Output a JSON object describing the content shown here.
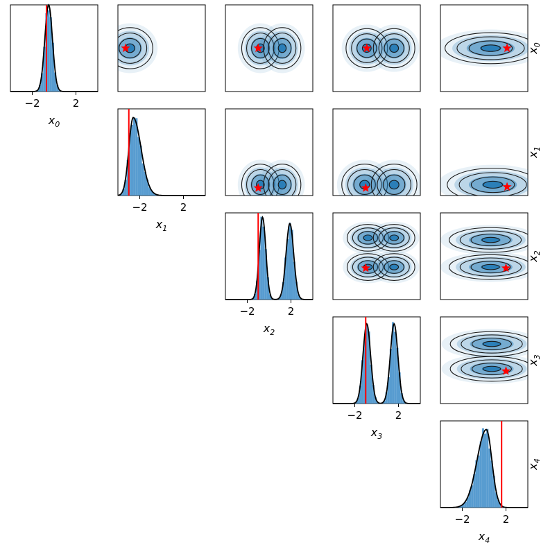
{
  "chart_data": {
    "type": "corner",
    "variables": [
      {
        "symbol": "x",
        "sub": "0"
      },
      {
        "symbol": "x",
        "sub": "1"
      },
      {
        "symbol": "x",
        "sub": "2"
      },
      {
        "symbol": "x",
        "sub": "3"
      },
      {
        "symbol": "x",
        "sub": "4"
      }
    ],
    "xlim": [
      -4,
      4
    ],
    "xticks": [
      -2,
      2
    ],
    "tick_labels": [
      "−2",
      "2"
    ],
    "truth": [
      -0.7,
      -3.0,
      -1.0,
      -1.0,
      1.6
    ],
    "colors": {
      "hist": "#3b8bc8",
      "kde": "#000000",
      "truth": "#ff0000",
      "density": "#1f77b4"
    },
    "marginals": [
      {
        "modes": [
          {
            "mu": -0.5,
            "sd": 0.35,
            "w": 1
          }
        ],
        "peak": 1.0
      },
      {
        "modes": [
          {
            "mu": -2.6,
            "sd": 0.4,
            "w": 1
          }
        ],
        "skew": 1.8,
        "peak": 0.9
      },
      {
        "modes": [
          {
            "mu": -0.6,
            "sd": 0.3,
            "w": 0.52
          },
          {
            "mu": 1.9,
            "sd": 0.35,
            "w": 0.48
          }
        ],
        "peak": 0.95
      },
      {
        "modes": [
          {
            "mu": -0.9,
            "sd": 0.35,
            "w": 0.5
          },
          {
            "mu": 1.6,
            "sd": 0.35,
            "w": 0.5
          }
        ],
        "peak": 0.92
      },
      {
        "modes": [
          {
            "mu": 0.2,
            "sd": 0.85,
            "w": 1
          }
        ],
        "skew": 0.6,
        "peak": 0.9
      }
    ],
    "pairs": [
      {
        "row": 0,
        "col": 1,
        "blobs": [
          {
            "cx": -2.9,
            "cy": 0,
            "rx": 1.1,
            "ry": 1.0
          }
        ],
        "star": [
          -3.3,
          0
        ]
      },
      {
        "row": 0,
        "col": 2,
        "blobs": [
          {
            "cx": -0.8,
            "cy": 0,
            "rx": 0.9,
            "ry": 1.0
          },
          {
            "cx": 1.2,
            "cy": 0,
            "rx": 0.9,
            "ry": 1.0
          }
        ],
        "star": [
          -1.0,
          0
        ]
      },
      {
        "row": 0,
        "col": 3,
        "blobs": [
          {
            "cx": -0.9,
            "cy": 0,
            "rx": 1.0,
            "ry": 0.95
          },
          {
            "cx": 1.6,
            "cy": 0,
            "rx": 1.0,
            "ry": 0.95
          }
        ],
        "star": [
          -0.9,
          0
        ]
      },
      {
        "row": 0,
        "col": 4,
        "blobs": [
          {
            "cx": 0.6,
            "cy": 0,
            "rx": 2.2,
            "ry": 0.75
          }
        ],
        "star": [
          2.1,
          0
        ]
      },
      {
        "row": 1,
        "col": 2,
        "blobs": [
          {
            "cx": -0.8,
            "cy": -3.0,
            "rx": 0.9,
            "ry": 1.0
          },
          {
            "cx": 1.2,
            "cy": -3.0,
            "rx": 0.9,
            "ry": 1.0
          }
        ],
        "star": [
          -1.0,
          -3.3
        ]
      },
      {
        "row": 1,
        "col": 3,
        "blobs": [
          {
            "cx": -1.1,
            "cy": -3.0,
            "rx": 1.1,
            "ry": 1.0
          },
          {
            "cx": 1.6,
            "cy": -3.0,
            "rx": 1.1,
            "ry": 1.0
          }
        ],
        "star": [
          -1.0,
          -3.3
        ]
      },
      {
        "row": 1,
        "col": 4,
        "blobs": [
          {
            "cx": 0.8,
            "cy": -3.0,
            "rx": 2.2,
            "ry": 0.8
          }
        ],
        "star": [
          2.1,
          -3.2
        ]
      },
      {
        "row": 2,
        "col": 3,
        "blobs": [
          {
            "cx": -0.8,
            "cy": 1.7,
            "rx": 1.0,
            "ry": 0.65
          },
          {
            "cx": 1.6,
            "cy": 1.7,
            "rx": 1.0,
            "ry": 0.65
          },
          {
            "cx": -0.8,
            "cy": -1.0,
            "rx": 1.0,
            "ry": 0.65
          },
          {
            "cx": 1.6,
            "cy": -1.0,
            "rx": 1.0,
            "ry": 0.65
          }
        ],
        "star": [
          -1.0,
          -1.1
        ]
      },
      {
        "row": 2,
        "col": 4,
        "blobs": [
          {
            "cx": 0.6,
            "cy": 1.5,
            "rx": 2.0,
            "ry": 0.6
          },
          {
            "cx": 0.6,
            "cy": -1.0,
            "rx": 2.0,
            "ry": 0.6
          }
        ],
        "star": [
          2.0,
          -1.1
        ]
      },
      {
        "row": 3,
        "col": 4,
        "blobs": [
          {
            "cx": 0.7,
            "cy": 1.5,
            "rx": 2.0,
            "ry": 0.6
          },
          {
            "cx": 0.7,
            "cy": -0.8,
            "rx": 2.0,
            "ry": 0.6
          }
        ],
        "star": [
          2.0,
          -1.0
        ]
      }
    ]
  }
}
